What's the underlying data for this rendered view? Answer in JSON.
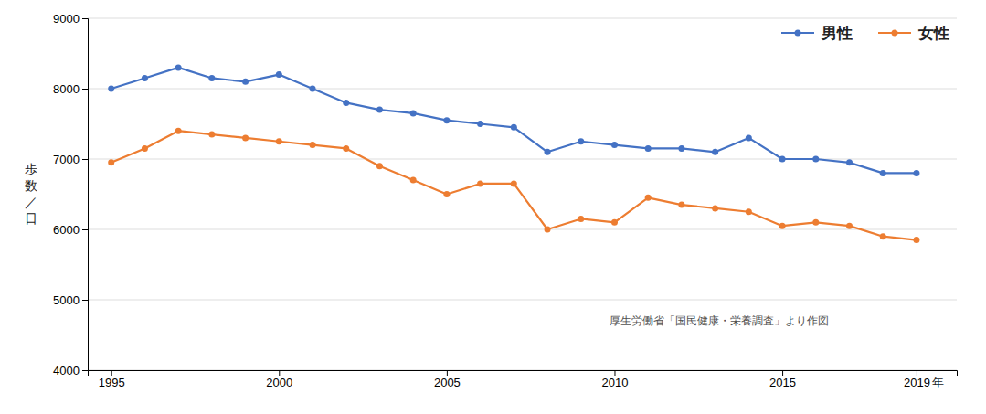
{
  "chart_data": {
    "type": "line",
    "x": [
      1995,
      1996,
      1997,
      1998,
      1999,
      2000,
      2001,
      2002,
      2003,
      2004,
      2005,
      2006,
      2007,
      2008,
      2009,
      2010,
      2011,
      2012,
      2013,
      2014,
      2015,
      2016,
      2017,
      2018,
      2019
    ],
    "series": [
      {
        "name": "男性",
        "color": "#4472C4",
        "marker": "circle",
        "values": [
          8000,
          8150,
          8300,
          8150,
          8100,
          8200,
          8000,
          7800,
          7700,
          7650,
          7550,
          7500,
          7450,
          7100,
          7250,
          7200,
          7150,
          7150,
          7100,
          7300,
          7000,
          7000,
          6950,
          6800,
          6800
        ]
      },
      {
        "name": "女性",
        "color": "#ED7D31",
        "marker": "circle",
        "values": [
          6950,
          7150,
          7400,
          7350,
          7300,
          7250,
          7200,
          7150,
          6900,
          6700,
          6500,
          6650,
          6650,
          6000,
          6150,
          6100,
          6450,
          6350,
          6300,
          6250,
          6050,
          6100,
          6050,
          5900,
          5850
        ]
      }
    ],
    "y_label": "歩\n数\n／\n日",
    "x_label": "年",
    "annotation": "厚生労働省「国民健康・栄養調査」より作図",
    "xlim": [
      1994.3,
      2020.2
    ],
    "xticks": [
      1995,
      2000,
      2005,
      2010,
      2015,
      2019
    ],
    "ylim": [
      4000,
      9000
    ],
    "yticks": [
      4000,
      5000,
      6000,
      7000,
      8000,
      9000
    ],
    "grid": "y",
    "legend": "upper right"
  }
}
